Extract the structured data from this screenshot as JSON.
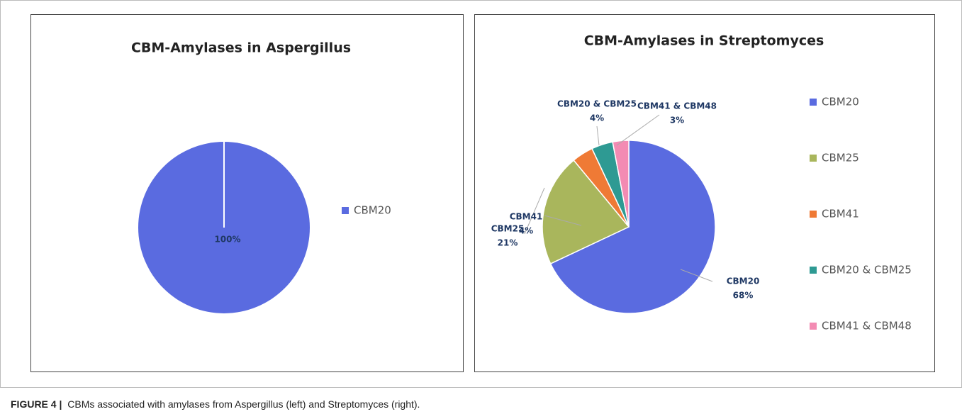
{
  "chart_data": [
    {
      "type": "pie",
      "title": "CBM-Amylases in Aspergillus",
      "categories": [
        "CBM20"
      ],
      "values": [
        100
      ],
      "value_labels": [
        "100%"
      ],
      "colors": [
        "#5a6be0"
      ],
      "legend": "right"
    },
    {
      "type": "pie",
      "title": "CBM-Amylases in Streptomyces",
      "categories": [
        "CBM20",
        "CBM25",
        "CBM41",
        "CBM20 & CBM25",
        "CBM41 & CBM48"
      ],
      "values": [
        68,
        21,
        4,
        4,
        3
      ],
      "value_labels": [
        "68%",
        "21%",
        "4%",
        "4%",
        "3%"
      ],
      "colors": [
        "#5a6be0",
        "#a9b65c",
        "#ef7a35",
        "#2e9a93",
        "#f38bb3"
      ],
      "legend": "right"
    }
  ],
  "caption": {
    "label": "FIGURE 4 |",
    "text": "CBMs associated with amylases from Aspergillus (left) and Streptomyces (right)."
  }
}
